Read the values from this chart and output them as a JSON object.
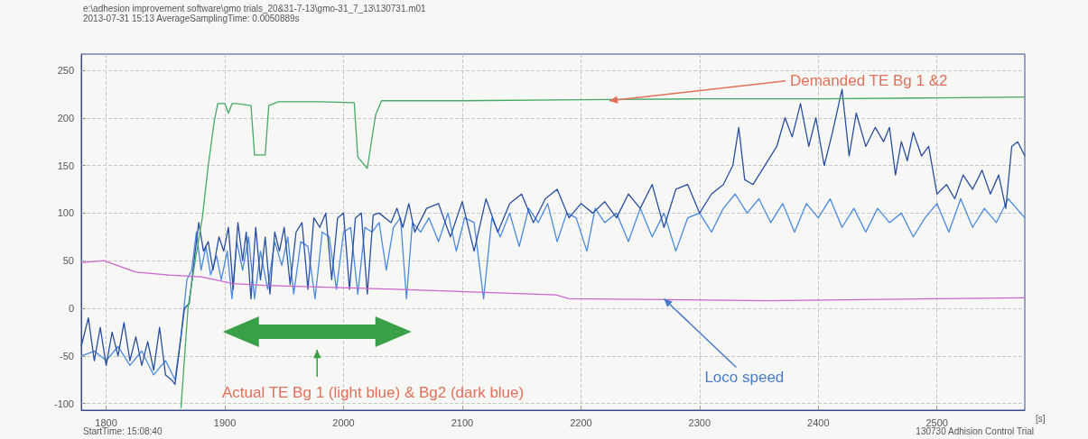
{
  "chart_data": {
    "type": "line",
    "xlabel": "[s]",
    "xlim": [
      1779,
      2574
    ],
    "xticks": [
      1800,
      1900,
      2000,
      2100,
      2200,
      2300,
      2400,
      2500
    ],
    "ylim": [
      -107,
      267
    ],
    "yticks": [
      -100,
      -50,
      0,
      50,
      100,
      150,
      200,
      250
    ],
    "grid": true,
    "marker": "none",
    "line_style": "solid",
    "annotations": [
      "e:\\adhesion improvement software\\gmo trials_20&31-7-13\\gmo-31_7_13\\130731.m01",
      "2013-07-31 15:13   AverageSamplingTime: 0.0050889s",
      "StartTime: 15:08:40",
      "130730 Adhision Control Trial",
      {
        "text": "Demanded TE Bg 1 &2",
        "x": 2224,
        "y": 218
      },
      {
        "text": "Loco speed",
        "x": 2270,
        "y": 10
      },
      "Actual TE Bg 1 (light blue) & Bg2 (dark blue)"
    ],
    "series": [
      {
        "color": "#4a8ae0",
        "x": [
          1779,
          1790,
          1800,
          1810,
          1820,
          1830,
          1840,
          1850,
          1858,
          1863,
          1868,
          1872,
          1876,
          1880,
          1884,
          1888,
          1893,
          1897,
          1902,
          1906,
          1910,
          1915,
          1920,
          1925,
          1930,
          1936,
          1942,
          1948,
          1953,
          1958,
          1964,
          1970,
          1976,
          1982,
          1988,
          1994,
          2000,
          2006,
          2012,
          2018,
          2024,
          2030,
          2036,
          2042,
          2048,
          2053,
          2058,
          2065,
          2072,
          2080,
          2088,
          2095,
          2102,
          2110,
          2118,
          2125,
          2132,
          2140,
          2148,
          2156,
          2164,
          2172,
          2180,
          2188,
          2196,
          2205,
          2212,
          2220,
          2230,
          2240,
          2250,
          2260,
          2270,
          2280,
          2290,
          2300,
          2310,
          2320,
          2330,
          2340,
          2350,
          2360,
          2370,
          2380,
          2390,
          2400,
          2410,
          2420,
          2430,
          2440,
          2450,
          2460,
          2470,
          2480,
          2490,
          2500,
          2510,
          2520,
          2530,
          2540,
          2550,
          2560,
          2574
        ],
        "values": [
          -50,
          -45,
          -55,
          -40,
          -60,
          -45,
          -70,
          -55,
          -75,
          -30,
          30,
          40,
          80,
          40,
          65,
          35,
          55,
          30,
          60,
          10,
          70,
          40,
          75,
          10,
          60,
          20,
          70,
          45,
          75,
          15,
          70,
          65,
          10,
          80,
          75,
          20,
          80,
          85,
          15,
          85,
          80,
          90,
          40,
          85,
          95,
          10,
          90,
          80,
          95,
          70,
          100,
          60,
          95,
          90,
          10,
          95,
          75,
          100,
          65,
          105,
          90,
          110,
          70,
          100,
          95,
          60,
          105,
          90,
          100,
          70,
          105,
          75,
          100,
          60,
          95,
          100,
          80,
          105,
          120,
          100,
          115,
          90,
          110,
          80,
          110,
          95,
          115,
          85,
          105,
          80,
          105,
          90,
          100,
          75,
          95,
          110,
          80,
          115,
          85,
          105,
          90,
          115,
          95
        ]
      },
      {
        "color": "#2a4fa0",
        "x": [
          1779,
          1785,
          1790,
          1795,
          1800,
          1805,
          1810,
          1815,
          1820,
          1825,
          1830,
          1835,
          1840,
          1845,
          1850,
          1855,
          1858,
          1862,
          1866,
          1870,
          1875,
          1878,
          1882,
          1886,
          1890,
          1895,
          1899,
          1903,
          1907,
          1911,
          1915,
          1918,
          1922,
          1926,
          1930,
          1934,
          1938,
          1942,
          1946,
          1950,
          1955,
          1960,
          1965,
          1970,
          1975,
          1980,
          1985,
          1990,
          1995,
          2000,
          2005,
          2010,
          2015,
          2020,
          2025,
          2030,
          2040,
          2045,
          2050,
          2055,
          2060,
          2070,
          2080,
          2090,
          2100,
          2110,
          2120,
          2130,
          2140,
          2150,
          2160,
          2170,
          2180,
          2190,
          2200,
          2210,
          2220,
          2230,
          2240,
          2250,
          2260,
          2270,
          2280,
          2290,
          2300,
          2310,
          2320,
          2328,
          2333,
          2338,
          2345,
          2355,
          2365,
          2372,
          2378,
          2385,
          2392,
          2398,
          2405,
          2412,
          2420,
          2426,
          2432,
          2440,
          2448,
          2455,
          2460,
          2465,
          2470,
          2475,
          2480,
          2487,
          2493,
          2500,
          2508,
          2515,
          2522,
          2530,
          2538,
          2545,
          2552,
          2558,
          2563,
          2568,
          2574
        ],
        "values": [
          -40,
          -10,
          -55,
          -20,
          -60,
          -25,
          -50,
          -15,
          -55,
          -30,
          -60,
          -35,
          -65,
          -20,
          -70,
          -75,
          -80,
          -40,
          0,
          5,
          60,
          90,
          60,
          70,
          40,
          75,
          60,
          85,
          20,
          90,
          50,
          80,
          10,
          85,
          30,
          75,
          15,
          80,
          60,
          85,
          25,
          80,
          90,
          20,
          95,
          85,
          100,
          30,
          95,
          100,
          20,
          95,
          100,
          15,
          98,
          100,
          90,
          105,
          85,
          110,
          80,
          105,
          110,
          75,
          112,
          60,
          115,
          80,
          110,
          120,
          90,
          115,
          125,
          95,
          110,
          100,
          112,
          95,
          120,
          105,
          130,
          85,
          125,
          130,
          100,
          120,
          130,
          150,
          190,
          135,
          130,
          150,
          170,
          200,
          180,
          215,
          170,
          200,
          150,
          185,
          230,
          160,
          205,
          170,
          190,
          175,
          190,
          140,
          175,
          155,
          185,
          160,
          170,
          120,
          130,
          115,
          140,
          125,
          145,
          120,
          140,
          105,
          170,
          175,
          160
        ]
      },
      {
        "color": "#44aa66",
        "x": [
          1863,
          1869,
          1875,
          1881,
          1886,
          1891,
          1894,
          1900,
          1903,
          1906,
          1910,
          1922,
          1925,
          1934,
          1937,
          1945,
          1980,
          2009,
          2012,
          2020,
          2027,
          2032,
          2100,
          2200,
          2300,
          2400,
          2500,
          2574
        ],
        "values": [
          -105,
          1,
          50,
          95,
          150,
          196,
          215,
          215,
          205,
          215,
          215,
          213,
          161,
          161,
          213,
          217,
          217,
          216,
          159,
          147,
          203,
          218,
          218,
          219,
          220,
          220,
          221,
          222
        ]
      },
      {
        "color": "#cc66cc",
        "x": [
          1779,
          1798,
          1825,
          1853,
          1880,
          1907,
          1934,
          2043,
          2179,
          2190,
          2357,
          2574
        ],
        "values": [
          48,
          50,
          38,
          35,
          33,
          26,
          24,
          20,
          14,
          10,
          8,
          11
        ]
      }
    ]
  }
}
